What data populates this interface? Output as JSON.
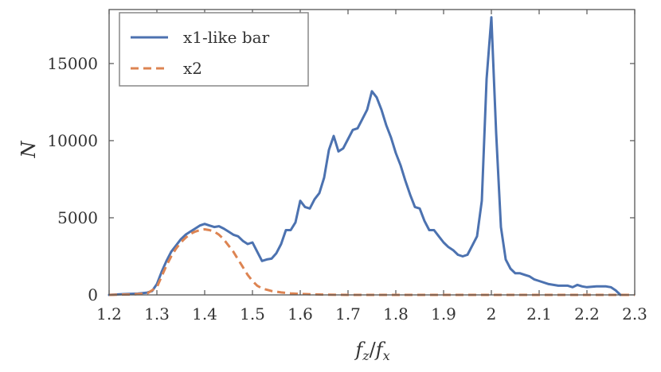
{
  "chart_data": {
    "type": "line",
    "xlabel": "f_z/f_x",
    "ylabel": "N",
    "xlim": [
      1.2,
      2.3
    ],
    "ylim": [
      0,
      18500
    ],
    "x_ticks": [
      1.2,
      1.3,
      1.4,
      1.5,
      1.6,
      1.7,
      1.8,
      1.9,
      2.0,
      2.1,
      2.2,
      2.3
    ],
    "x_tick_labels": [
      "1.2",
      "1.3",
      "1.4",
      "1.5",
      "1.6",
      "1.7",
      "1.8",
      "1.9",
      "2",
      "2.1",
      "2.2",
      "2.3"
    ],
    "y_ticks": [
      0,
      5000,
      10000,
      15000
    ],
    "y_tick_labels": [
      "0",
      "5000",
      "10000",
      "15000"
    ],
    "grid": false,
    "legend_position": "top-left",
    "series": [
      {
        "name": "x1-like bar",
        "color": "#4c72b0",
        "style": "solid",
        "x": [
          1.2,
          1.23,
          1.26,
          1.28,
          1.29,
          1.3,
          1.31,
          1.32,
          1.33,
          1.34,
          1.35,
          1.36,
          1.37,
          1.38,
          1.39,
          1.4,
          1.41,
          1.42,
          1.43,
          1.44,
          1.45,
          1.46,
          1.47,
          1.48,
          1.49,
          1.5,
          1.51,
          1.52,
          1.53,
          1.54,
          1.55,
          1.56,
          1.57,
          1.58,
          1.59,
          1.6,
          1.61,
          1.62,
          1.63,
          1.64,
          1.65,
          1.66,
          1.67,
          1.68,
          1.69,
          1.7,
          1.71,
          1.72,
          1.73,
          1.74,
          1.75,
          1.76,
          1.77,
          1.78,
          1.79,
          1.8,
          1.81,
          1.82,
          1.83,
          1.84,
          1.85,
          1.86,
          1.87,
          1.88,
          1.89,
          1.9,
          1.91,
          1.92,
          1.93,
          1.94,
          1.95,
          1.96,
          1.97,
          1.98,
          1.99,
          2.0,
          2.01,
          2.02,
          2.03,
          2.04,
          2.05,
          2.06,
          2.07,
          2.08,
          2.09,
          2.1,
          2.12,
          2.14,
          2.16,
          2.17,
          2.18,
          2.19,
          2.2,
          2.22,
          2.24,
          2.25,
          2.26,
          2.27
        ],
        "y": [
          0,
          50,
          80,
          150,
          250,
          700,
          1500,
          2200,
          2800,
          3200,
          3600,
          3900,
          4100,
          4300,
          4500,
          4600,
          4500,
          4400,
          4450,
          4300,
          4100,
          3900,
          3800,
          3500,
          3300,
          3400,
          2800,
          2200,
          2300,
          2350,
          2700,
          3300,
          4200,
          4200,
          4700,
          6100,
          5700,
          5600,
          6200,
          6600,
          7600,
          9400,
          10300,
          9300,
          9500,
          10100,
          10700,
          10800,
          11400,
          12000,
          13200,
          12800,
          12000,
          11000,
          10200,
          9200,
          8400,
          7400,
          6500,
          5700,
          5600,
          4800,
          4200,
          4200,
          3800,
          3400,
          3100,
          2900,
          2600,
          2500,
          2600,
          3200,
          3800,
          6100,
          14000,
          18000,
          10500,
          4400,
          2300,
          1700,
          1400,
          1400,
          1300,
          1200,
          1000,
          900,
          700,
          600,
          600,
          500,
          650,
          550,
          500,
          550,
          550,
          500,
          300,
          0
        ]
      },
      {
        "name": "x2",
        "color": "#dd8452",
        "style": "dashed",
        "x": [
          1.2,
          1.25,
          1.28,
          1.3,
          1.31,
          1.32,
          1.33,
          1.34,
          1.35,
          1.36,
          1.37,
          1.38,
          1.39,
          1.4,
          1.41,
          1.42,
          1.43,
          1.44,
          1.45,
          1.46,
          1.47,
          1.48,
          1.49,
          1.5,
          1.51,
          1.52,
          1.54,
          1.56,
          1.58,
          1.6,
          1.63,
          1.66,
          1.7,
          1.8,
          1.9,
          2.0,
          2.1,
          2.2,
          2.3
        ],
        "y": [
          0,
          30,
          100,
          500,
          1200,
          1900,
          2500,
          3000,
          3400,
          3700,
          3950,
          4100,
          4200,
          4250,
          4200,
          4100,
          3900,
          3600,
          3200,
          2800,
          2300,
          1800,
          1300,
          900,
          600,
          420,
          250,
          160,
          100,
          60,
          30,
          10,
          0,
          0,
          0,
          0,
          0,
          0,
          0
        ]
      }
    ]
  }
}
